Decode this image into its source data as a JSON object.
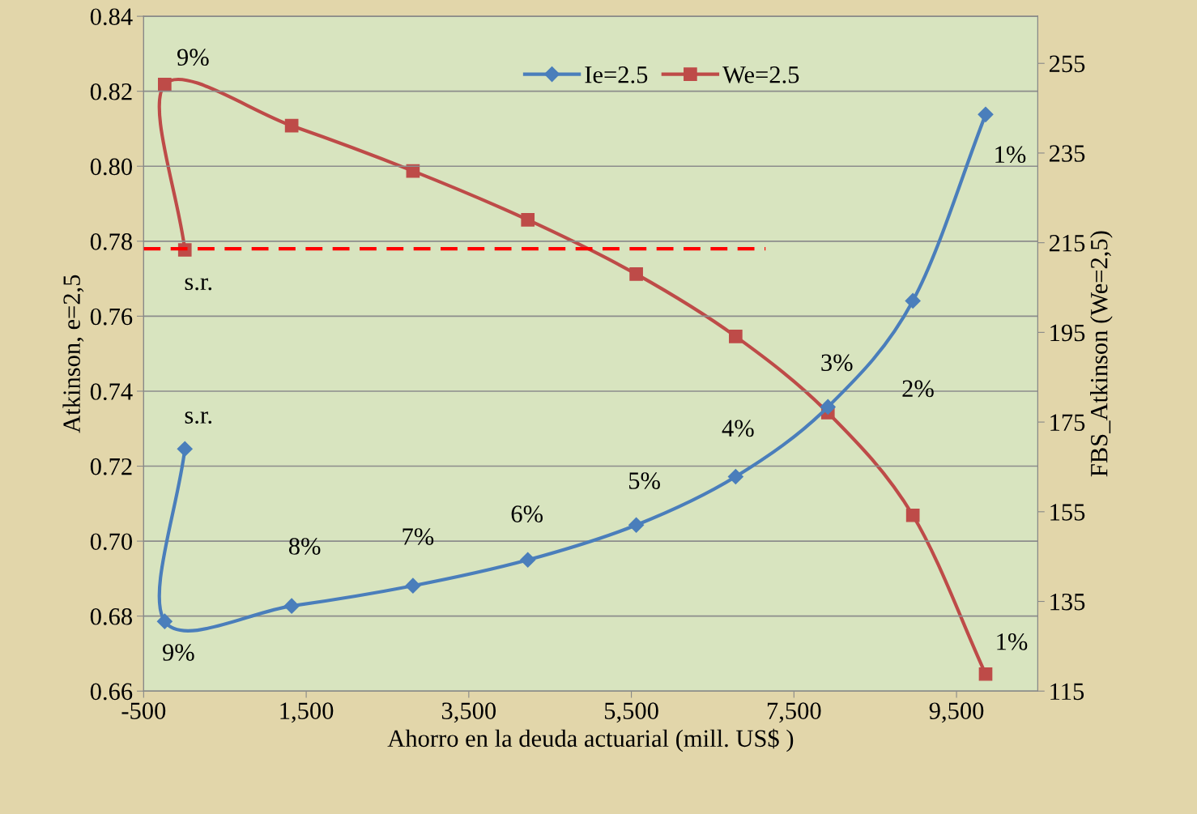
{
  "chart_data": {
    "type": "line",
    "xlabel": "Ahorro en la deuda actuarial (mill. US$ )",
    "ylabel": "Atkinson, e=2,5",
    "y2label": "FBS_Atkinson (We=2,5)",
    "series": [
      {
        "name": "Ie=2.5",
        "color": "#4a7ebb",
        "marker": "diamond",
        "x": [
          7,
          -241,
          1321,
          2813,
          4226,
          5560,
          6783,
          7918,
          8963,
          9858
        ],
        "values": [
          0.7246,
          0.6786,
          0.6827,
          0.6881,
          0.695,
          0.7043,
          0.7172,
          0.7358,
          0.7641,
          0.8138
        ]
      },
      {
        "name": "We=2.5",
        "color": "#be4b48",
        "marker": "square",
        "axis": "y2",
        "x": [
          7,
          -241,
          1321,
          2813,
          4226,
          5560,
          6783,
          7918,
          8963,
          9858
        ],
        "values": [
          213.4,
          250.3,
          241.1,
          231.0,
          220.1,
          208.0,
          194.1,
          177.1,
          154.2,
          118.8
        ]
      },
      {
        "color": "#ff0000",
        "marker": "none",
        "line_style": "dashed",
        "x": [
          -500,
          7150
        ],
        "values": [
          0.778,
          0.778
        ]
      }
    ],
    "xlim": [
      -500,
      10500
    ],
    "xticks": [
      -500,
      {
        "value": 1500,
        "label": "1,500"
      },
      {
        "value": 3500,
        "label": "3,500"
      },
      {
        "value": 5500,
        "label": "5,500"
      },
      {
        "value": 7500,
        "label": "7,500"
      },
      {
        "value": 9500,
        "label": "9,500"
      }
    ],
    "ylim": [
      0.66,
      0.84
    ],
    "yticks": [
      {
        "value": 0.66,
        "label": "0.66"
      },
      {
        "value": 0.68,
        "label": "0.68"
      },
      {
        "value": 0.7,
        "label": "0.70"
      },
      {
        "value": 0.72,
        "label": "0.72"
      },
      {
        "value": 0.74,
        "label": "0.74"
      },
      {
        "value": 0.76,
        "label": "0.76"
      },
      {
        "value": 0.78,
        "label": "0.78"
      },
      {
        "value": 0.8,
        "label": "0.80"
      },
      {
        "value": 0.82,
        "label": "0.82"
      },
      {
        "value": 0.84,
        "label": "0.84"
      }
    ],
    "y2lim": [
      115,
      265.5
    ],
    "y2ticks": [
      115,
      135,
      155,
      175,
      195,
      215,
      235,
      255
    ],
    "grid": "y",
    "legend": "top",
    "annotations": [
      {
        "text": "s.r.",
        "x": 7,
        "y": 0.7246
      },
      {
        "text": "9%",
        "x": -241,
        "y": 0.6786
      },
      {
        "text": "8%",
        "x": 1321,
        "y": 0.6827
      },
      {
        "text": "7%",
        "x": 2813,
        "y": 0.6881
      },
      {
        "text": "6%",
        "x": 4226,
        "y": 0.695
      },
      {
        "text": "5%",
        "x": 5560,
        "y": 0.7043
      },
      {
        "text": "4%",
        "x": 6783,
        "y": 0.7172
      },
      {
        "text": "3%",
        "x": 7918,
        "y": 0.7358
      },
      "2%",
      {
        "text": "1%",
        "x": 9858,
        "y": 0.8138
      },
      {
        "text": "s.r.",
        "x": 7,
        "y": 0.7777
      },
      {
        "text": "9%",
        "x": -241,
        "y": 0.8218
      },
      {
        "text": "1%",
        "x": 9858,
        "y": 0.6646
      }
    ]
  }
}
